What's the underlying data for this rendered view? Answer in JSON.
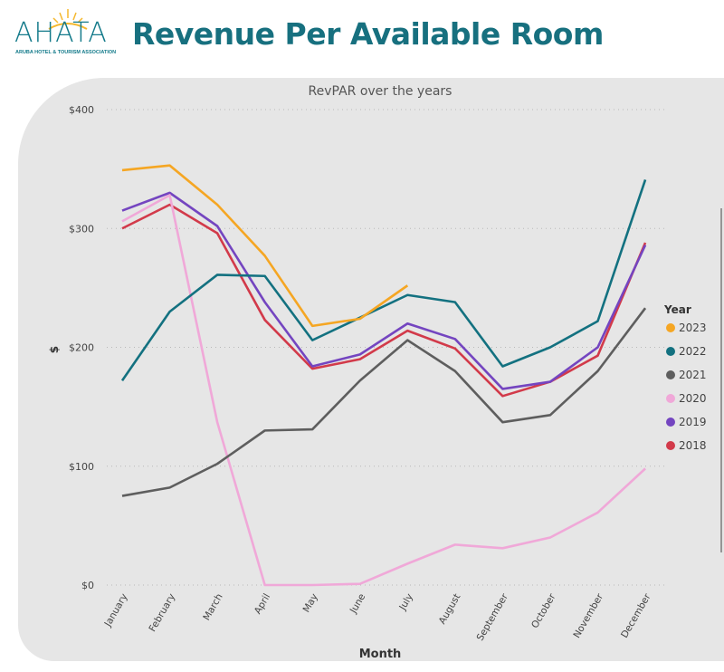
{
  "header": {
    "logo_text": "AHATA",
    "logo_subtitle": "ARUBA HOTEL & TOURISM ASSOCIATION",
    "title": "Revenue Per Available Room"
  },
  "chart_data": {
    "type": "line",
    "title": "RevPAR over the years",
    "xlabel": "Month",
    "ylabel": "$",
    "ylim": [
      0,
      400
    ],
    "yticks": [
      0,
      100,
      200,
      300,
      400
    ],
    "ytick_labels": [
      "$0",
      "$100",
      "$200",
      "$300",
      "$400"
    ],
    "categories": [
      "January",
      "February",
      "March",
      "April",
      "May",
      "June",
      "July",
      "August",
      "September",
      "October",
      "November",
      "December"
    ],
    "legend_title": "Year",
    "legend_position": "right",
    "grid": "horizontal dotted",
    "series": [
      {
        "name": "2023",
        "color": "#f5a623",
        "values": [
          349,
          353,
          320,
          277,
          218,
          224,
          252,
          null,
          null,
          null,
          null,
          null
        ]
      },
      {
        "name": "2022",
        "color": "#137180",
        "values": [
          172,
          230,
          261,
          260,
          206,
          225,
          244,
          238,
          184,
          200,
          222,
          341
        ]
      },
      {
        "name": "2021",
        "color": "#5e5e5e",
        "values": [
          75,
          82,
          102,
          130,
          131,
          172,
          206,
          180,
          137,
          143,
          180,
          233
        ]
      },
      {
        "name": "2020",
        "color": "#f0a8d8",
        "values": [
          306,
          328,
          137,
          0,
          0,
          1,
          18,
          34,
          31,
          40,
          61,
          98
        ]
      },
      {
        "name": "2019",
        "color": "#7445c0",
        "values": [
          315,
          330,
          302,
          238,
          184,
          194,
          220,
          207,
          165,
          171,
          200,
          286
        ]
      },
      {
        "name": "2018",
        "color": "#d23a4a",
        "values": [
          300,
          320,
          296,
          223,
          182,
          190,
          214,
          199,
          159,
          171,
          193,
          288
        ]
      }
    ]
  }
}
